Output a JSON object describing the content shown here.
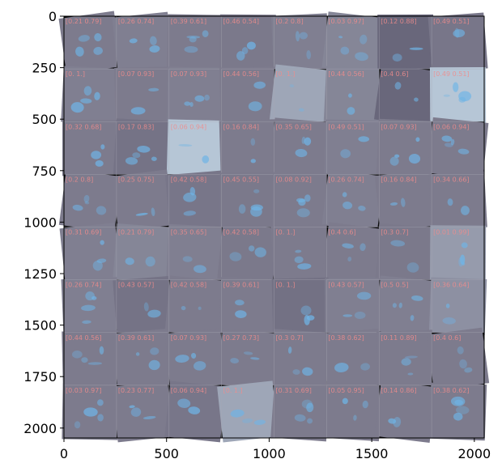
{
  "chart_data": {
    "type": "heatmap",
    "description_type": "image-grid",
    "title": "",
    "xlabel": "",
    "ylabel": "",
    "xlim": [
      0,
      2048
    ],
    "ylim": [
      2048,
      0
    ],
    "grid_rows": 8,
    "grid_cols": 8,
    "cell_size": 256,
    "x_ticks": [
      0,
      500,
      1000,
      1500,
      2000
    ],
    "y_ticks": [
      0,
      250,
      500,
      750,
      1000,
      1250,
      1500,
      1750,
      2000
    ],
    "cell_labels": [
      [
        "[0.21 0.79]",
        "[0.26 0.74]",
        "[0.39 0.61]",
        "[0.46 0.54]",
        "[0.2 0.8]",
        "[0.03 0.97]",
        "[0.12 0.88]",
        "[0.49 0.51]"
      ],
      [
        "[0. 1.]",
        "[0.07 0.93]",
        "[0.07 0.93]",
        "[0.44 0.56]",
        "[0. 1.]",
        "[0.44 0.56]",
        "[0.4 0.6]",
        "[0.49 0.51]"
      ],
      [
        "[0.32 0.68]",
        "[0.17 0.83]",
        "[0.06 0.94]",
        "[0.16 0.84]",
        "[0.35 0.65]",
        "[0.49 0.51]",
        "[0.07 0.93]",
        "[0.06 0.94]"
      ],
      [
        "[0.2 0.8]",
        "[0.25 0.75]",
        "[0.42 0.58]",
        "[0.45 0.55]",
        "[0.08 0.92]",
        "[0.26 0.74]",
        "[0.16 0.84]",
        "[0.34 0.66]"
      ],
      [
        "[0.31 0.69]",
        "[0.21 0.79]",
        "[0.35 0.65]",
        "[0.42 0.58]",
        "[0. 1.]",
        "[0.4 0.6]",
        "[0.3 0.7]",
        "[0.01 0.99]"
      ],
      [
        "[0.26 0.74]",
        "[0.43 0.57]",
        "[0.42 0.58]",
        "[0.39 0.61]",
        "[0. 1.]",
        "[0.43 0.57]",
        "[0.5 0.5]",
        "[0.36 0.64]"
      ],
      [
        "[0.44 0.56]",
        "[0.39 0.61]",
        "[0.07 0.93]",
        "[0.27 0.73]",
        "[0.3 0.7]",
        "[0.38 0.62]",
        "[0.11 0.89]",
        "[0.4 0.6]"
      ],
      [
        "[0.03 0.97]",
        "[0.23 0.77]",
        "[0.06 0.94]",
        "[0. 1.]",
        "[0.31 0.69]",
        "[0.05 0.95]",
        "[0.14 0.86]",
        "[0.38 0.62]"
      ]
    ],
    "cell_brightness": [
      [
        0.5,
        0.52,
        0.5,
        0.48,
        0.52,
        0.55,
        0.3,
        0.45
      ],
      [
        0.52,
        0.5,
        0.52,
        0.5,
        0.7,
        0.55,
        0.3,
        0.85
      ],
      [
        0.5,
        0.42,
        0.85,
        0.5,
        0.5,
        0.52,
        0.5,
        0.5
      ],
      [
        0.5,
        0.5,
        0.45,
        0.48,
        0.5,
        0.52,
        0.5,
        0.5
      ],
      [
        0.52,
        0.55,
        0.52,
        0.48,
        0.5,
        0.5,
        0.48,
        0.65
      ],
      [
        0.52,
        0.42,
        0.5,
        0.5,
        0.4,
        0.52,
        0.52,
        0.6
      ],
      [
        0.5,
        0.5,
        0.5,
        0.5,
        0.5,
        0.5,
        0.5,
        0.5
      ],
      [
        0.5,
        0.5,
        0.45,
        0.7,
        0.5,
        0.5,
        0.5,
        0.5
      ]
    ],
    "colors": {
      "tile_base": "#7d7b8d",
      "tile_dark": "#4a4860",
      "tile_bright": "#cfe6f5",
      "highlight": "#6fb4e6",
      "border": "#000000",
      "label": "#f08c8c",
      "gridline": "#a9a9b4"
    }
  }
}
